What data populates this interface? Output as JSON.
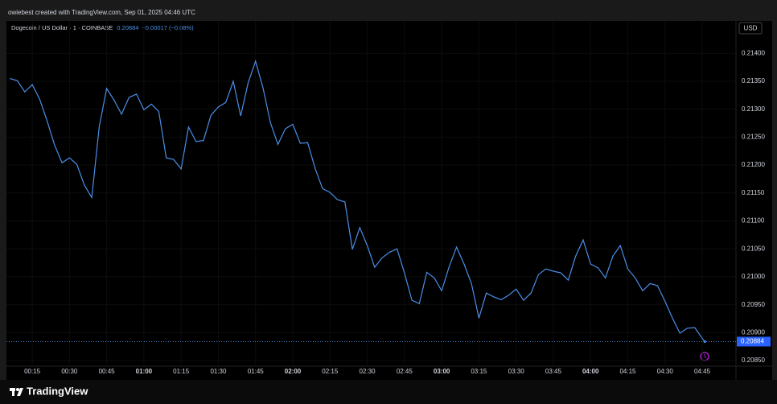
{
  "chart_data": {
    "type": "line",
    "title": "owiebest created with TradingView.com, Sep 01, 2025 04:46 UTC",
    "symbol": "Dogecoin / US Dollar · 1 · COINBASE",
    "header_price": "0.20884",
    "header_change": "−0.00017 (−0.08%)",
    "currency": "USD",
    "brand": "TradingView",
    "last_price": 0.20884,
    "x": [
      6,
      9,
      12,
      15,
      18,
      21,
      24,
      27,
      30,
      33,
      36,
      39,
      42,
      45,
      48,
      51,
      54,
      57,
      60,
      63,
      66,
      69,
      72,
      75,
      78,
      81,
      84,
      87,
      90,
      93,
      96,
      99,
      102,
      105,
      108,
      111,
      114,
      117,
      120,
      123,
      126,
      129,
      132,
      135,
      138,
      141,
      144,
      147,
      150,
      153,
      156,
      159,
      162,
      165,
      168,
      171,
      174,
      177,
      180,
      183,
      186,
      189,
      192,
      195,
      198,
      201,
      204,
      207,
      210,
      213,
      216,
      219,
      222,
      225,
      228,
      231,
      234,
      237,
      240,
      243,
      246,
      249,
      252,
      255,
      258,
      261,
      264,
      267,
      270,
      273,
      276,
      279,
      282,
      285,
      286
    ],
    "series": [
      {
        "name": "DOGEUSD",
        "color": "#4a8fe7",
        "values": [
          0.21355,
          0.21351,
          0.21331,
          0.21344,
          0.21318,
          0.21279,
          0.21236,
          0.21204,
          0.21213,
          0.21201,
          0.21164,
          0.21142,
          0.21269,
          0.21337,
          0.21316,
          0.21291,
          0.21321,
          0.21327,
          0.21299,
          0.21309,
          0.21296,
          0.21213,
          0.2121,
          0.21193,
          0.21268,
          0.21242,
          0.21244,
          0.21289,
          0.21304,
          0.21312,
          0.2135,
          0.21288,
          0.21347,
          0.21386,
          0.21338,
          0.21276,
          0.21237,
          0.21265,
          0.21273,
          0.21239,
          0.2124,
          0.21194,
          0.21158,
          0.21151,
          0.21138,
          0.21134,
          0.21049,
          0.21088,
          0.21056,
          0.21017,
          0.21034,
          0.21044,
          0.2105,
          0.21007,
          0.20958,
          0.20952,
          0.21008,
          0.20998,
          0.20975,
          0.21018,
          0.21053,
          0.21023,
          0.20988,
          0.20926,
          0.20971,
          0.20964,
          0.20959,
          0.20967,
          0.20978,
          0.20958,
          0.20971,
          0.21004,
          0.21014,
          0.2101,
          0.21007,
          0.20994,
          0.21037,
          0.21066,
          0.21023,
          0.21016,
          0.20998,
          0.21037,
          0.21056,
          0.21014,
          0.20998,
          0.20975,
          0.20988,
          0.20984,
          0.20956,
          0.20926,
          0.20899,
          0.20908,
          0.20909,
          0.2089,
          0.20884
        ]
      }
    ],
    "xlim": [
      4.6,
      298.6
    ],
    "xticks": [
      {
        "value": 15,
        "label": "00:15"
      },
      {
        "value": 30,
        "label": "00:30"
      },
      {
        "value": 45,
        "label": "00:45"
      },
      {
        "value": 60,
        "label": "01:00"
      },
      {
        "value": 75,
        "label": "01:15"
      },
      {
        "value": 90,
        "label": "01:30"
      },
      {
        "value": 105,
        "label": "01:45"
      },
      {
        "value": 120,
        "label": "02:00"
      },
      {
        "value": 135,
        "label": "02:15"
      },
      {
        "value": 150,
        "label": "02:30"
      },
      {
        "value": 165,
        "label": "02:45"
      },
      {
        "value": 180,
        "label": "03:00"
      },
      {
        "value": 195,
        "label": "03:15"
      },
      {
        "value": 210,
        "label": "03:30"
      },
      {
        "value": 225,
        "label": "03:45"
      },
      {
        "value": 240,
        "label": "04:00"
      },
      {
        "value": 255,
        "label": "04:15"
      },
      {
        "value": 270,
        "label": "04:30"
      },
      {
        "value": 285,
        "label": "04:45"
      }
    ],
    "ylim": [
      0.2084,
      0.21458
    ],
    "yticks": [
      {
        "value": 0.2085,
        "label": "0.20850"
      },
      {
        "value": 0.209,
        "label": "0.20900"
      },
      {
        "value": 0.2095,
        "label": "0.20950"
      },
      {
        "value": 0.21,
        "label": "0.21000"
      },
      {
        "value": 0.2105,
        "label": "0.21050"
      },
      {
        "value": 0.211,
        "label": "0.21100"
      },
      {
        "value": 0.2115,
        "label": "0.21150"
      },
      {
        "value": 0.212,
        "label": "0.21200"
      },
      {
        "value": 0.2125,
        "label": "0.21250"
      },
      {
        "value": 0.213,
        "label": "0.21300"
      },
      {
        "value": 0.2135,
        "label": "0.21350"
      },
      {
        "value": 0.214,
        "label": "0.21400"
      }
    ],
    "grid": true
  }
}
